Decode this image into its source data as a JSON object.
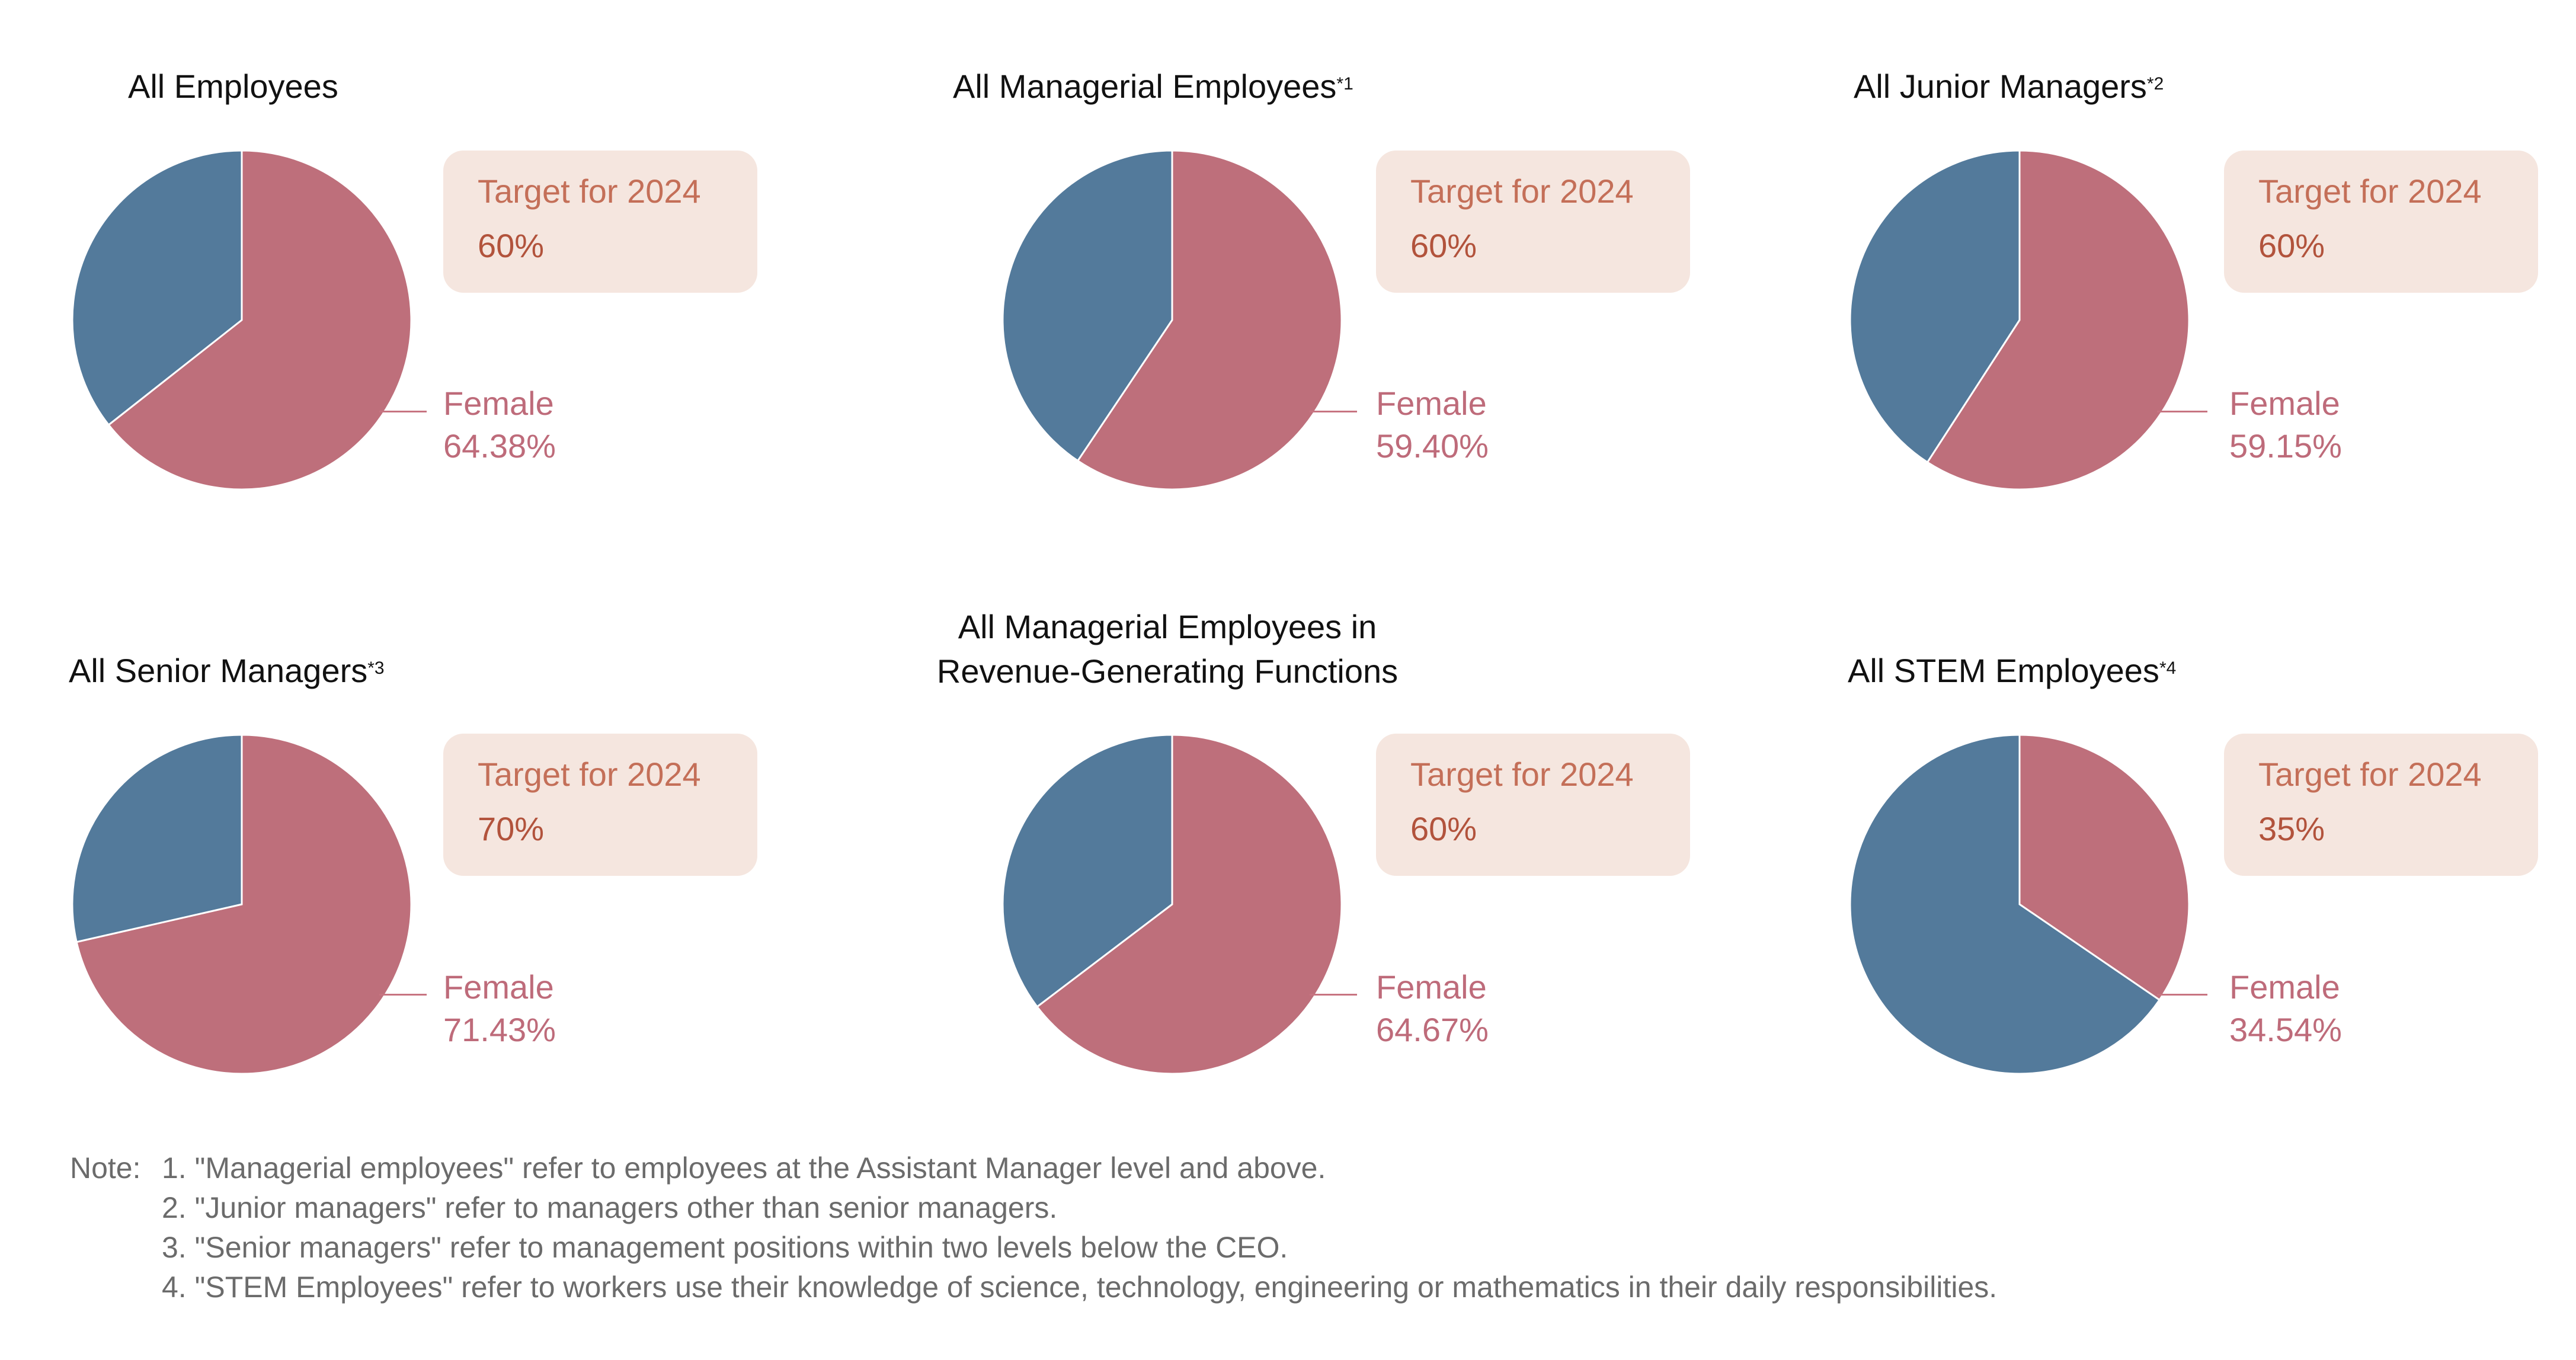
{
  "colors": {
    "female": "#be6f7b",
    "other": "#537a9b",
    "target_bg": "#f5e6df",
    "target_text": "#c46f58",
    "female_text": "#be6b7a"
  },
  "chart_data": [
    {
      "type": "pie",
      "title": "All Employees",
      "footnote": "",
      "target_label": "Target for 2024",
      "target_value": "60%",
      "slice_label": "Female",
      "female_pct_label": "64.38%",
      "values": [
        64.38,
        35.62
      ]
    },
    {
      "type": "pie",
      "title": "All Managerial Employees",
      "footnote": "*1",
      "target_label": "Target for 2024",
      "target_value": "60%",
      "slice_label": "Female",
      "female_pct_label": "59.40%",
      "values": [
        59.4,
        40.6
      ]
    },
    {
      "type": "pie",
      "title": "All Junior Managers",
      "footnote": "*2",
      "target_label": "Target for 2024",
      "target_value": "60%",
      "slice_label": "Female",
      "female_pct_label": "59.15%",
      "values": [
        59.15,
        40.85
      ]
    },
    {
      "type": "pie",
      "title": "All Senior Managers",
      "footnote": "*3",
      "target_label": "Target for 2024",
      "target_value": "70%",
      "slice_label": "Female",
      "female_pct_label": "71.43%",
      "values": [
        71.43,
        28.57
      ]
    },
    {
      "type": "pie",
      "title_line1": "All Managerial Employees in",
      "title_line2": "Revenue-Generating Functions",
      "footnote": "",
      "target_label": "Target for 2024",
      "target_value": "60%",
      "slice_label": "Female",
      "female_pct_label": "64.67%",
      "values": [
        64.67,
        35.33
      ]
    },
    {
      "type": "pie",
      "title": "All STEM Employees",
      "footnote": "*4",
      "target_label": "Target for 2024",
      "target_value": "35%",
      "slice_label": "Female",
      "female_pct_label": "34.54%",
      "values": [
        34.54,
        65.46
      ]
    }
  ],
  "notes": {
    "prefix": "Note:",
    "lines": [
      "1. \"Managerial employees\" refer to employees at the Assistant Manager level and above.",
      "2. \"Junior managers\" refer to managers other than senior managers.",
      "3. \"Senior managers\" refer to management positions within two levels below the CEO.",
      "4. \"STEM Employees\" refer to workers use their knowledge of science, technology, engineering or mathematics in their daily responsibilities."
    ]
  }
}
